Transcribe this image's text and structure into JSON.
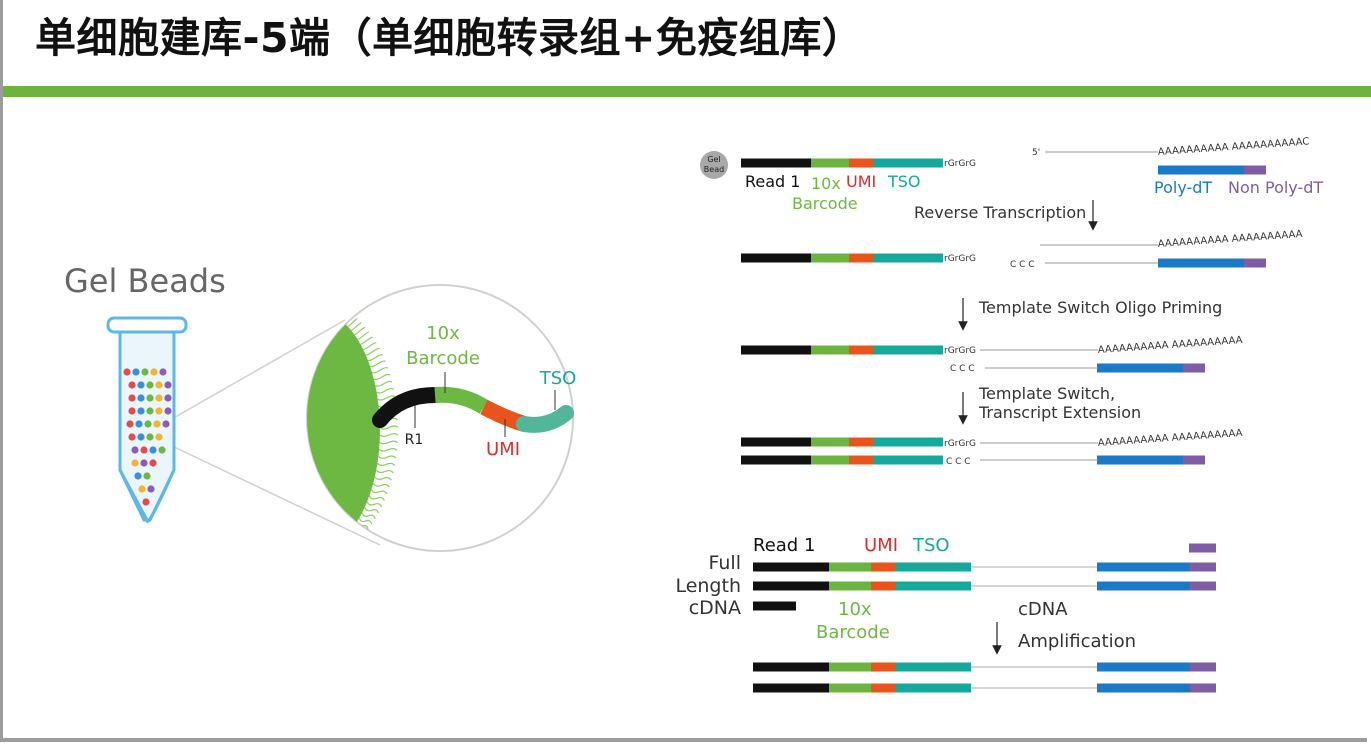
{
  "title": "单细胞建库-5端（单细胞转录组+免疫组库）",
  "colors": {
    "accent_bar": "#6db33f",
    "read1": "#111111",
    "barcode": "#6db33f",
    "umi": "#e9541c",
    "tso": "#16a89a",
    "poly_dt": "#1a7ac8",
    "non_poly_dt": "#7e5ca6",
    "bead": "#6cb843"
  },
  "left_panel": {
    "heading": "Gel Beads",
    "label_barcode_line1": "10x",
    "label_barcode_line2": "Barcode",
    "label_tso": "TSO",
    "label_r1": "R1",
    "label_umi": "UMI"
  },
  "workflow": {
    "gel_bead_line1": "Gel",
    "gel_bead_line2": "Bead",
    "rgrgrg": "rGrGrG",
    "five_prime": "5'",
    "poly_a_top": "AAAAAAAAAA AAAAAAAAAAC",
    "poly_a": "AAAAAAAAAA AAAAAAAAAA",
    "ccc": "C C C",
    "label_read1": "Read 1",
    "label_10x": "10x",
    "label_barcode": "Barcode",
    "label_umi": "UMI",
    "label_tso": "TSO",
    "label_poly_dt": "Poly-dT",
    "label_non_poly_dt": "Non Poly-dT",
    "step1": "Reverse Transcription",
    "step2": "Template Switch Oligo Priming",
    "step3_line1": "Template Switch,",
    "step3_line2": "Transcript Extension"
  },
  "amplification": {
    "label_read1": "Read 1",
    "label_umi": "UMI",
    "label_tso": "TSO",
    "label_full": "Full",
    "label_length": "Length",
    "label_cdna": "cDNA",
    "label_10x": "10x",
    "label_barcode": "Barcode",
    "step_cdna": "cDNA",
    "step_amplification": "Amplification"
  }
}
